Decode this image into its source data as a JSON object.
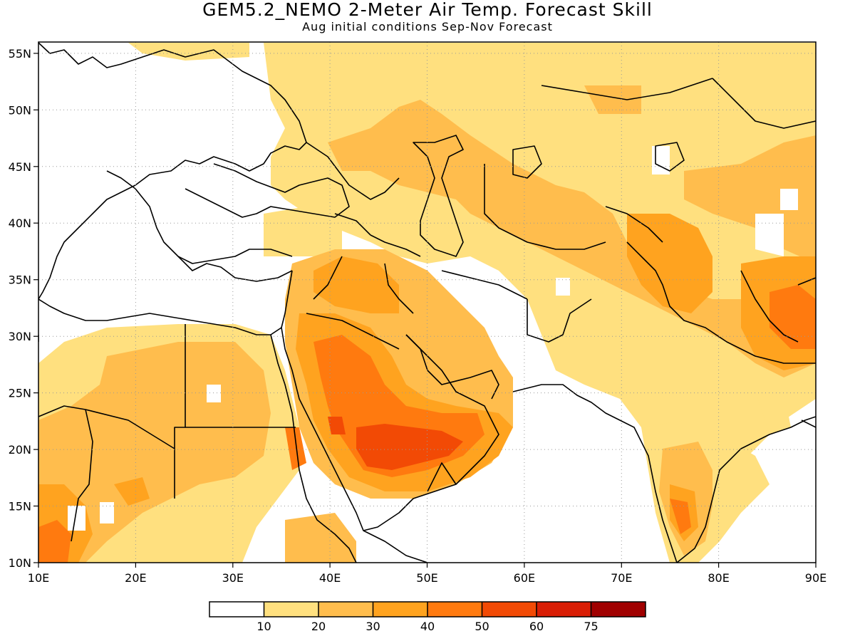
{
  "header": {
    "title": "GEM5.2_NEMO 2-Meter Air Temp. Forecast Skill",
    "subtitle": "Aug initial conditions  Sep-Nov Forecast"
  },
  "map": {
    "lon_range": [
      10,
      90
    ],
    "lat_range": [
      10,
      56
    ],
    "lon_ticks": [
      "10E",
      "20E",
      "30E",
      "40E",
      "50E",
      "60E",
      "70E",
      "80E",
      "90E"
    ],
    "lat_ticks": [
      "10N",
      "15N",
      "20N",
      "25N",
      "30N",
      "35N",
      "40N",
      "45N",
      "50N",
      "55N"
    ],
    "gridlines": "dotted"
  },
  "colorbar": {
    "labels": [
      "10",
      "20",
      "30",
      "40",
      "50",
      "60",
      "75"
    ],
    "colors": [
      "#ffffff",
      "#ffe07f",
      "#ffbd4d",
      "#ffa31f",
      "#ff7a0f",
      "#f24a05",
      "#d91e05",
      "#a00000"
    ]
  }
}
